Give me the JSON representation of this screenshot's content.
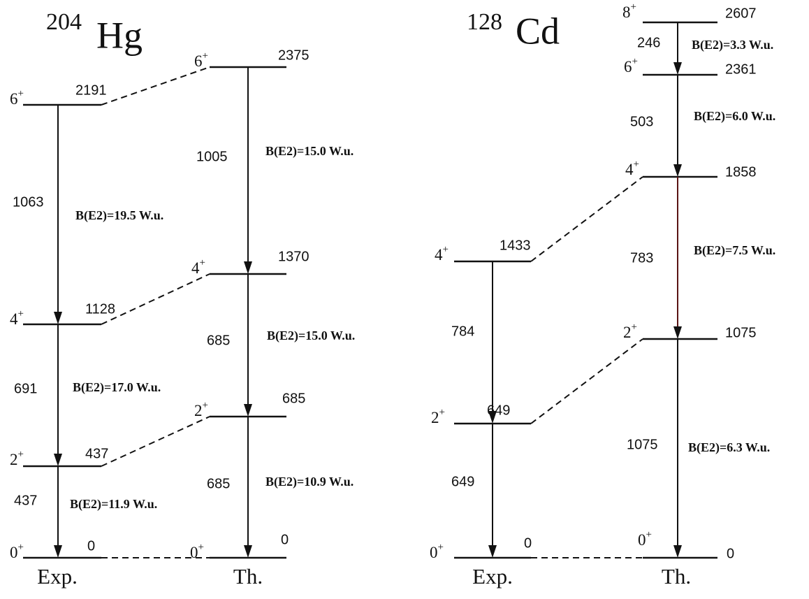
{
  "panels": [
    {
      "title": {
        "mass": "204",
        "element": "Hg"
      },
      "columns": [
        {
          "label": "Exp.",
          "levels": [
            {
              "spin": "0",
              "parity": "+",
              "energy": "0"
            },
            {
              "spin": "2",
              "parity": "+",
              "energy": "437"
            },
            {
              "spin": "4",
              "parity": "+",
              "energy": "1128"
            },
            {
              "spin": "6",
              "parity": "+",
              "energy": "2191"
            }
          ],
          "transitions": [
            {
              "energy": "437",
              "strength": "B(E2)=11.9 W.u."
            },
            {
              "energy": "691",
              "strength": "B(E2)=17.0  W.u."
            },
            {
              "energy": "1063",
              "strength": "B(E2)=19.5  W.u."
            }
          ]
        },
        {
          "label": "Th.",
          "levels": [
            {
              "spin": "0",
              "parity": "+",
              "energy": "0"
            },
            {
              "spin": "2",
              "parity": "+",
              "energy": "685"
            },
            {
              "spin": "4",
              "parity": "+",
              "energy": "1370"
            },
            {
              "spin": "6",
              "parity": "+",
              "energy": "2375"
            }
          ],
          "transitions": [
            {
              "energy": "685",
              "strength": "B(E2)=10.9 W.u."
            },
            {
              "energy": "685",
              "strength": "B(E2)=15.0  W.u."
            },
            {
              "energy": "1005",
              "strength": "B(E2)=15.0 W.u."
            }
          ]
        }
      ]
    },
    {
      "title": {
        "mass": "128",
        "element": "Cd"
      },
      "columns": [
        {
          "label": "Exp.",
          "levels": [
            {
              "spin": "0",
              "parity": "+",
              "energy": "0"
            },
            {
              "spin": "2",
              "parity": "+",
              "energy": "649"
            },
            {
              "spin": "4",
              "parity": "+",
              "energy": "1433"
            }
          ],
          "transitions": [
            {
              "energy": "649"
            },
            {
              "energy": "784"
            }
          ]
        },
        {
          "label": "Th.",
          "levels": [
            {
              "spin": "0",
              "parity": "+",
              "energy": "0"
            },
            {
              "spin": "2",
              "parity": "+",
              "energy": "1075"
            },
            {
              "spin": "4",
              "parity": "+",
              "energy": "1858"
            },
            {
              "spin": "6",
              "parity": "+",
              "energy": "2361"
            },
            {
              "spin": "8",
              "parity": "+",
              "energy": "2607"
            }
          ],
          "transitions": [
            {
              "energy": "1075",
              "strength": "B(E2)=6.3 W.u."
            },
            {
              "energy": "783",
              "strength": "B(E2)=7.5 W.u."
            },
            {
              "energy": "503",
              "strength": "B(E2)=6.0 W.u."
            },
            {
              "energy": "246",
              "strength": "B(E2)=3.3 W.u."
            }
          ]
        }
      ]
    }
  ]
}
